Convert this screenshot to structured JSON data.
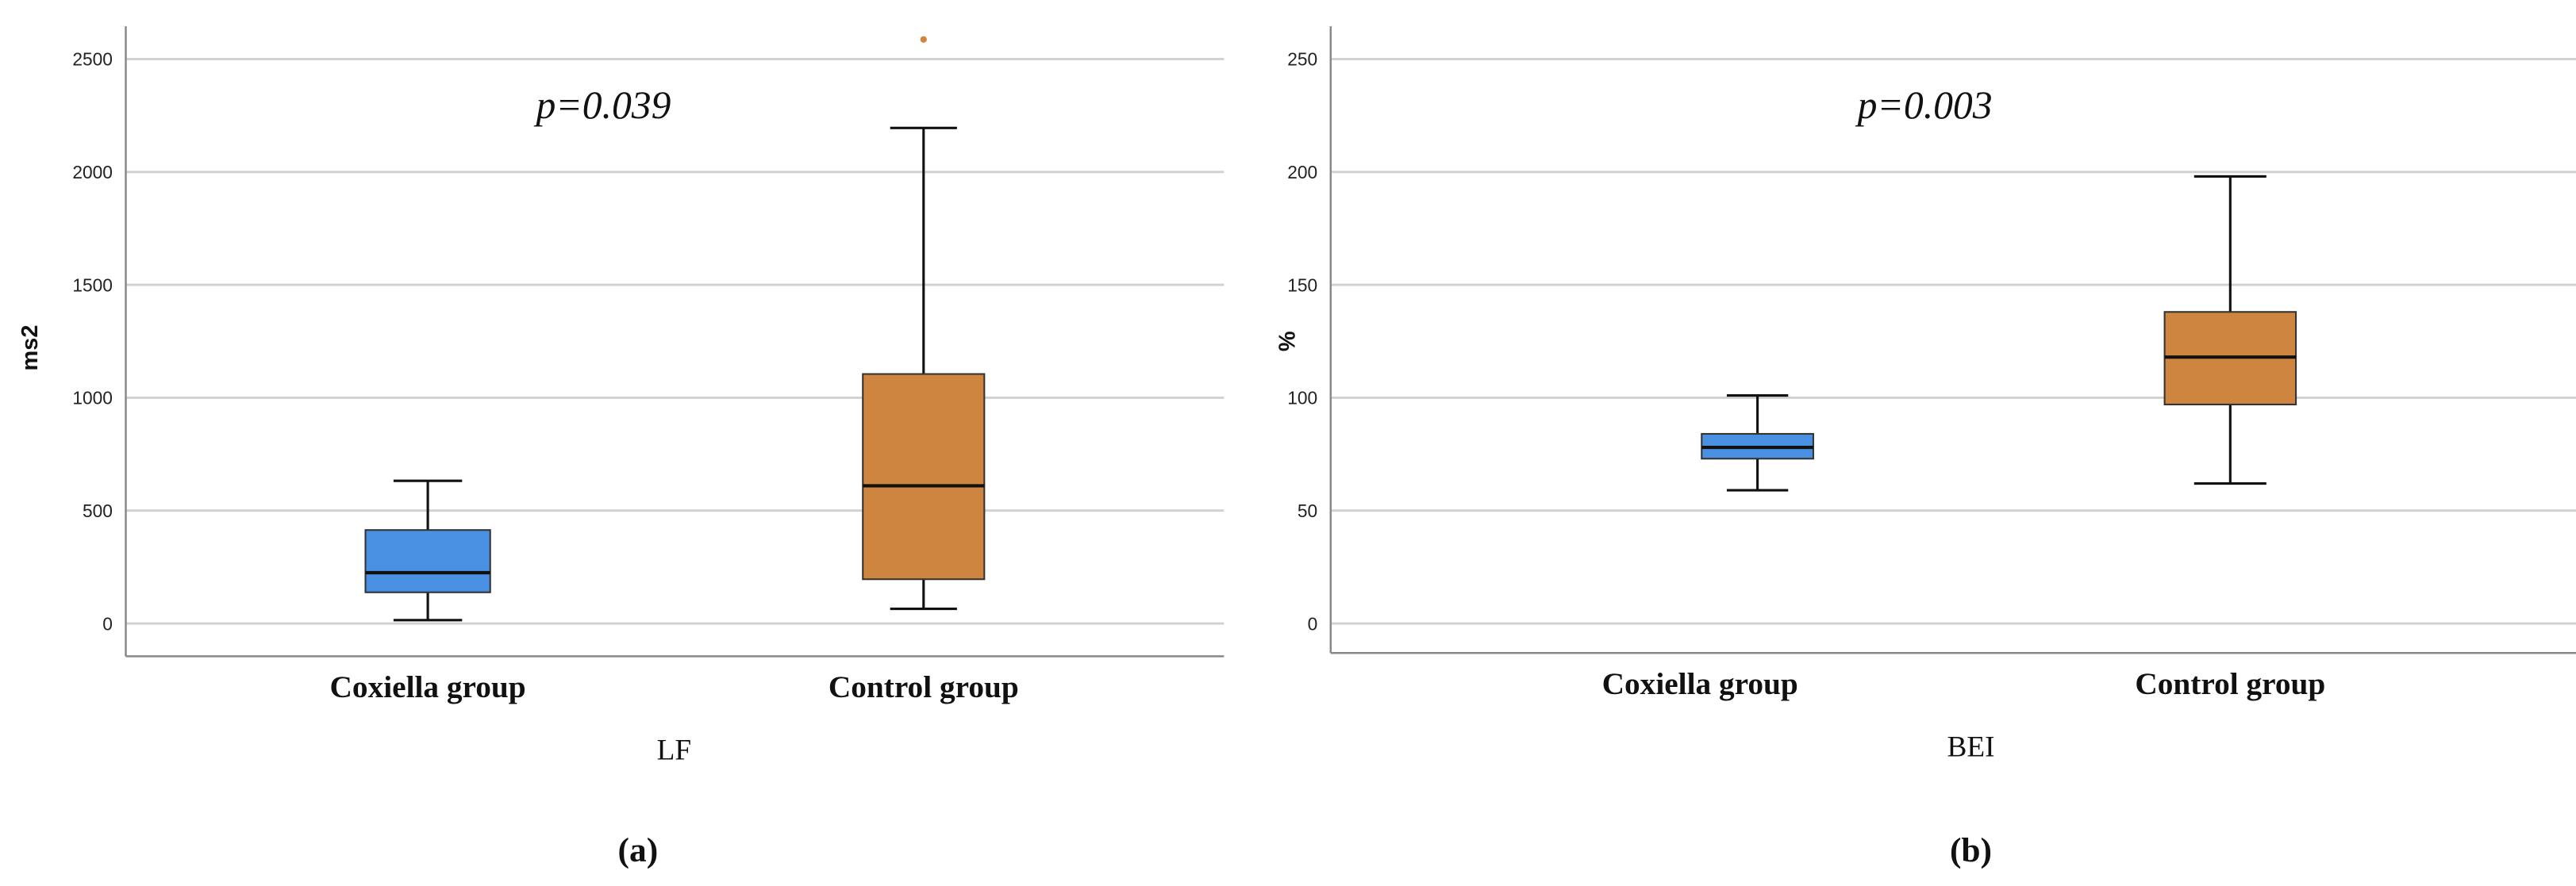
{
  "chart_data": [
    {
      "type": "box",
      "panel_label": "(a)",
      "xlabel": "LF",
      "ylabel": "ms2",
      "annotation": "p=0.039",
      "ylim": [
        -140,
        2650
      ],
      "yticks": [
        0,
        500,
        1000,
        1500,
        2000,
        2500
      ],
      "grid": true,
      "categories": [
        "Coxiella group",
        "Control group"
      ],
      "series": [
        {
          "name": "Coxiella group",
          "color": "#4a90e2",
          "min": 15,
          "q1": 138,
          "median": 225,
          "q3": 414,
          "max": 632,
          "outliers": []
        },
        {
          "name": "Control group",
          "color": "#cd853f",
          "min": 65,
          "q1": 196,
          "median": 610,
          "q3": 1105,
          "max": 2195,
          "outliers": [
            2587
          ]
        }
      ]
    },
    {
      "type": "box",
      "panel_label": "(b)",
      "xlabel": "BEI",
      "ylabel": "%",
      "annotation": "p=0.003",
      "ylim": [
        -13,
        265
      ],
      "yticks": [
        0,
        50,
        100,
        150,
        200,
        250
      ],
      "grid": true,
      "categories": [
        "Coxiella group",
        "Control group"
      ],
      "series": [
        {
          "name": "Coxiella group",
          "color": "#4a90e2",
          "min": 59,
          "q1": 73,
          "median": 78,
          "q3": 84,
          "max": 101,
          "outliers": []
        },
        {
          "name": "Control group",
          "color": "#cd853f",
          "min": 62,
          "q1": 97,
          "median": 118,
          "q3": 138,
          "max": 198,
          "outliers": []
        }
      ]
    }
  ]
}
